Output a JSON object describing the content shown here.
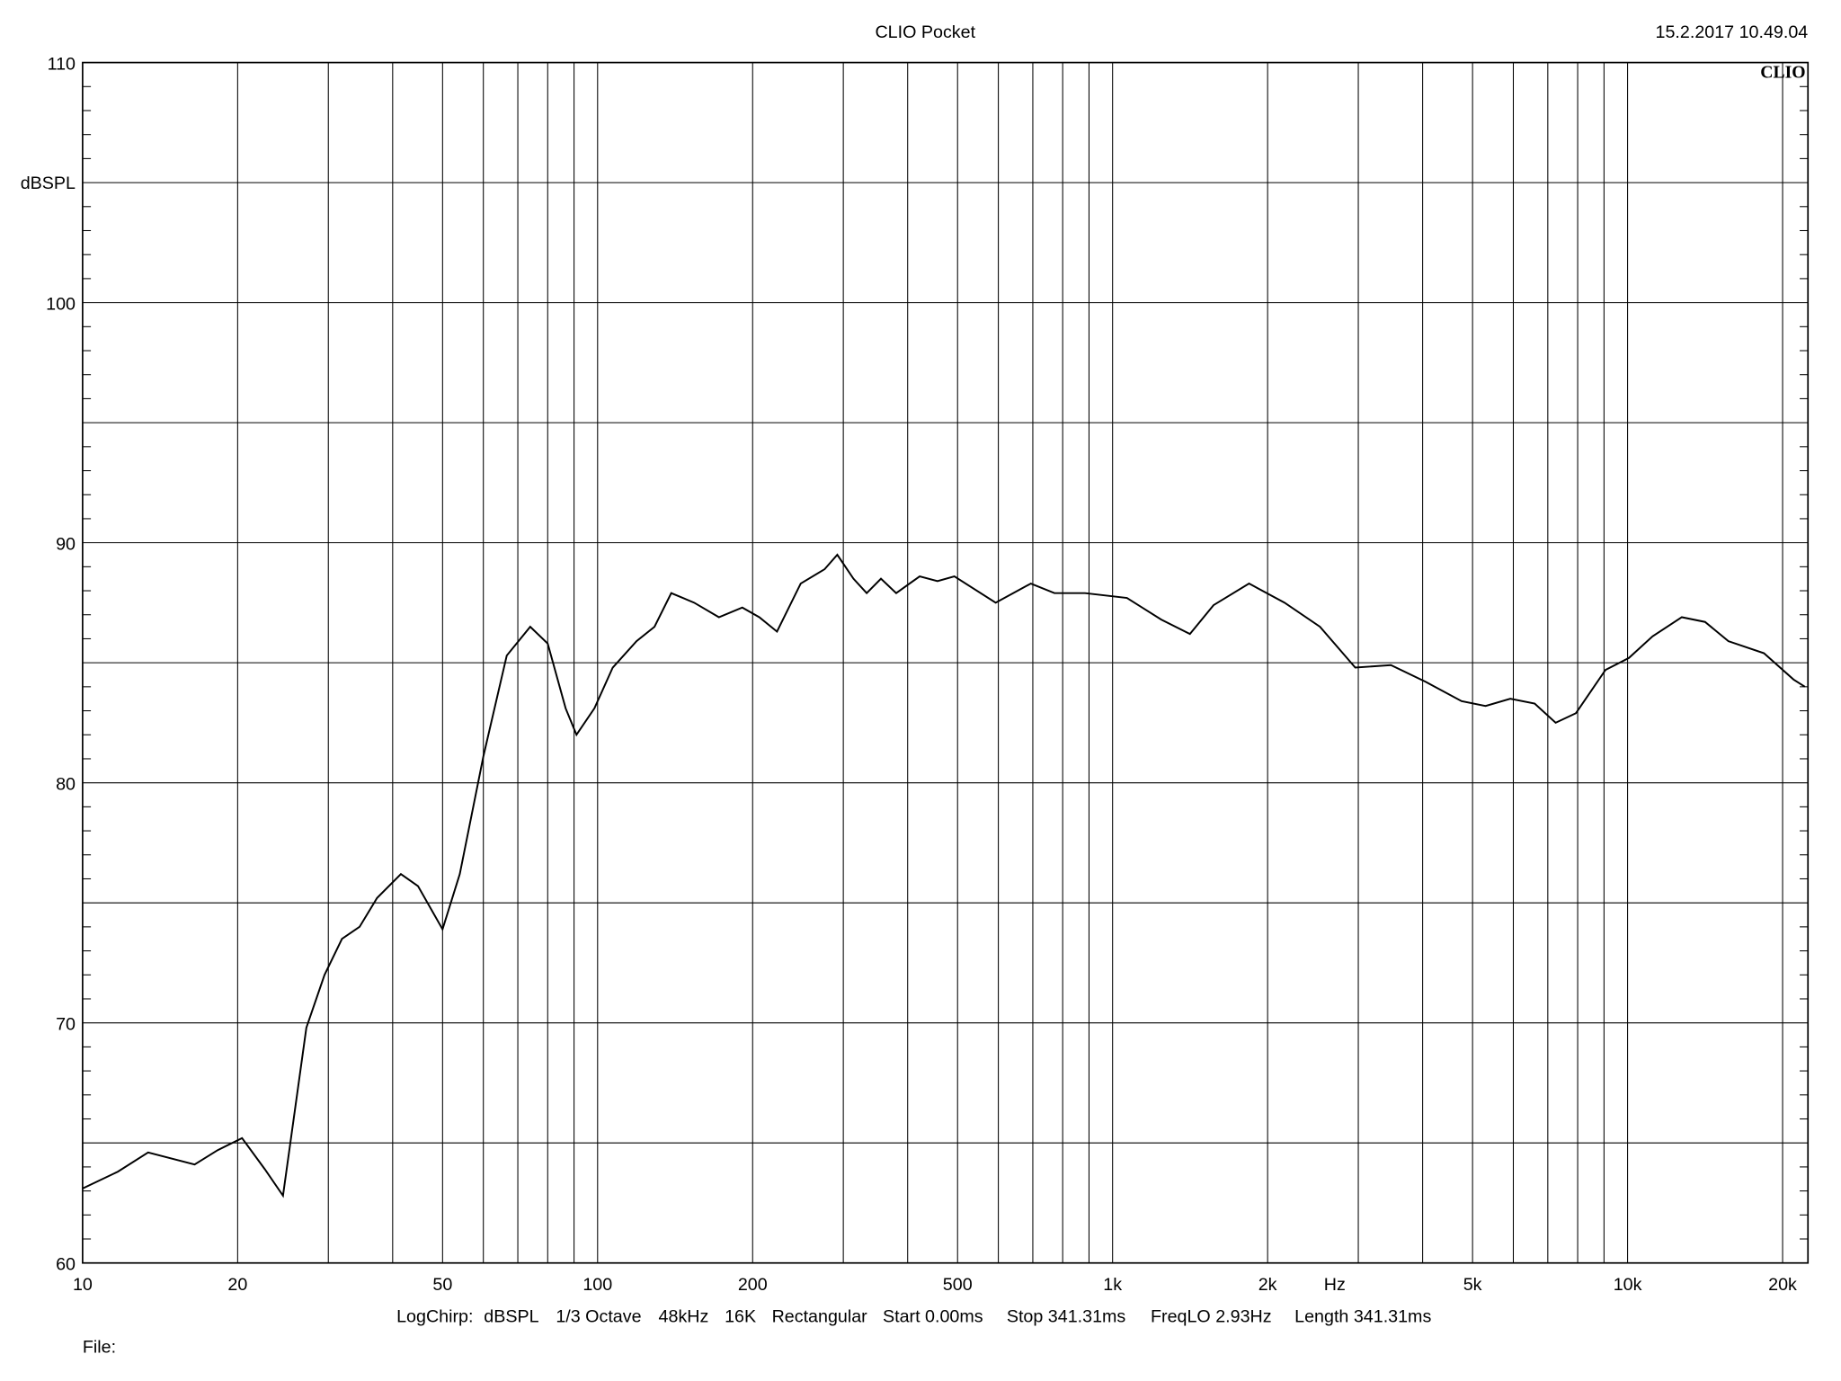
{
  "header": {
    "title": "CLIO Pocket",
    "timestamp": "15.2.2017 10.49.04",
    "logo": "CLIO"
  },
  "footer": {
    "settings": [
      "LogChirp:",
      "dBSPL",
      "1/3 Octave",
      "48kHz",
      "16K",
      "Rectangular",
      "Start 0.00ms",
      "Stop 341.31ms",
      "FreqLO 2.93Hz",
      "Length 341.31ms"
    ],
    "file_label": "File:"
  },
  "chart_data": {
    "type": "line",
    "title": "CLIO Pocket",
    "xlabel": "Hz",
    "ylabel": "dBSPL",
    "xscale": "log",
    "xlim": [
      10,
      22400
    ],
    "ylim": [
      60,
      110
    ],
    "grid": true,
    "x_tick_labels": [
      {
        "value": 10,
        "label": "10"
      },
      {
        "value": 20,
        "label": "20"
      },
      {
        "value": 50,
        "label": "50"
      },
      {
        "value": 100,
        "label": "100"
      },
      {
        "value": 200,
        "label": "200"
      },
      {
        "value": 500,
        "label": "500"
      },
      {
        "value": 1000,
        "label": "1k"
      },
      {
        "value": 2000,
        "label": "2k"
      },
      {
        "value": 5000,
        "label": "5k"
      },
      {
        "value": 10000,
        "label": "10k"
      },
      {
        "value": 20000,
        "label": "20k"
      }
    ],
    "y_tick_labels": [
      {
        "value": 60,
        "label": "60"
      },
      {
        "value": 70,
        "label": "70"
      },
      {
        "value": 80,
        "label": "80"
      },
      {
        "value": 90,
        "label": "90"
      },
      {
        "value": 100,
        "label": "100"
      },
      {
        "value": 110,
        "label": "110"
      }
    ],
    "line_color": "#000000",
    "series": [
      {
        "x": [
          10,
          11.7,
          13.4,
          16.5,
          18.3,
          20.4,
          22.6,
          24.5,
          27.2,
          29.5,
          31.9,
          34.5,
          37.3,
          41.5,
          44.8,
          50,
          54,
          60,
          66.6,
          74,
          80,
          86.7,
          91,
          98.6,
          107,
          119,
          129,
          139,
          154,
          172,
          191,
          206,
          223,
          248,
          276,
          292,
          314,
          333,
          355,
          380,
          422,
          457,
          493,
          593,
          694,
          771,
          884,
          1066,
          1243,
          1413,
          1570,
          1841,
          2157,
          2528,
          2960,
          3470,
          4060,
          4760,
          5300,
          5920,
          6600,
          7250,
          7940,
          9060,
          10060,
          11180,
          12740,
          14140,
          15700,
          18400,
          21000,
          22100
        ],
        "y": [
          63.1,
          63.8,
          64.6,
          64.1,
          64.7,
          65.2,
          63.9,
          62.8,
          69.8,
          72.0,
          73.5,
          74.0,
          75.2,
          76.2,
          75.7,
          73.9,
          76.2,
          81.1,
          85.3,
          86.5,
          85.8,
          83.1,
          82.0,
          83.1,
          84.8,
          85.9,
          86.5,
          87.9,
          87.5,
          86.9,
          87.3,
          86.9,
          86.3,
          88.3,
          88.9,
          89.5,
          88.5,
          87.9,
          88.5,
          87.9,
          88.6,
          88.4,
          88.6,
          87.5,
          88.3,
          87.9,
          87.9,
          87.7,
          86.8,
          86.2,
          87.4,
          88.3,
          87.5,
          86.5,
          84.8,
          84.9,
          84.2,
          83.4,
          83.2,
          83.5,
          83.3,
          82.5,
          82.9,
          84.7,
          85.2,
          86.1,
          86.9,
          86.7,
          85.9,
          85.4,
          84.3,
          84.0
        ]
      }
    ]
  }
}
